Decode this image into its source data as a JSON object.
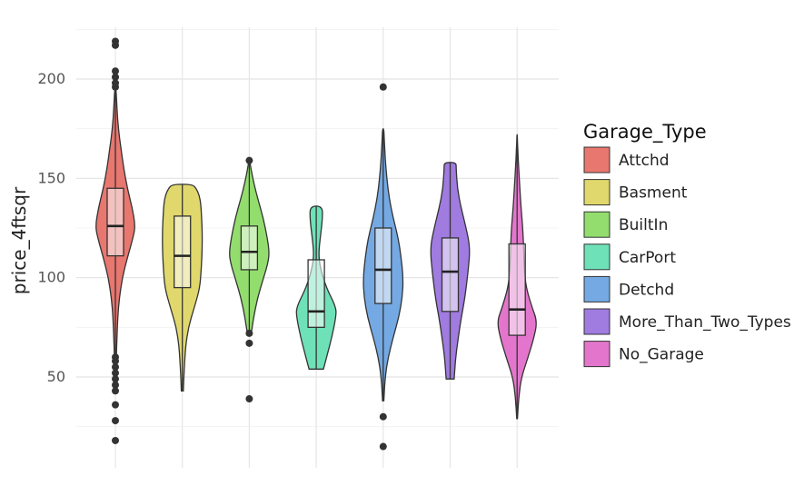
{
  "chart_data": {
    "type": "violin",
    "title": "",
    "xlabel": "",
    "ylabel": "price_4ftsqr",
    "ylim": [
      10,
      225
    ],
    "yticks": [
      50,
      100,
      150,
      200
    ],
    "grid": true,
    "legend": {
      "title": "Garage_Type",
      "position": "right"
    },
    "groups": [
      {
        "name": "Attchd",
        "color": "#e8776f",
        "min": 60,
        "max": 196,
        "q1": 111,
        "median": 126,
        "q3": 145,
        "outliers": [
          219,
          217,
          204,
          201,
          198,
          196,
          60,
          58,
          55,
          52,
          49,
          46,
          43,
          36,
          28,
          18
        ],
        "density": [
          [
            60,
            0.05
          ],
          [
            70,
            0.08
          ],
          [
            80,
            0.12
          ],
          [
            90,
            0.2
          ],
          [
            100,
            0.35
          ],
          [
            110,
            0.6
          ],
          [
            120,
            0.88
          ],
          [
            126,
            1.0
          ],
          [
            135,
            0.85
          ],
          [
            145,
            0.6
          ],
          [
            155,
            0.42
          ],
          [
            165,
            0.28
          ],
          [
            175,
            0.15
          ],
          [
            185,
            0.08
          ],
          [
            196,
            0.03
          ]
        ]
      },
      {
        "name": "Basment",
        "color": "#e0d86c",
        "min": 43,
        "max": 147,
        "q1": 95,
        "median": 111,
        "q3": 131,
        "outliers": [],
        "density": [
          [
            43,
            0.05
          ],
          [
            55,
            0.1
          ],
          [
            65,
            0.16
          ],
          [
            75,
            0.3
          ],
          [
            85,
            0.6
          ],
          [
            95,
            0.88
          ],
          [
            105,
            0.95
          ],
          [
            111,
            0.98
          ],
          [
            120,
            1.0
          ],
          [
            130,
            0.97
          ],
          [
            140,
            0.9
          ],
          [
            145,
            0.7
          ],
          [
            147,
            0.48
          ]
        ]
      },
      {
        "name": "BuiltIn",
        "color": "#93dd6e",
        "min": 72,
        "max": 158,
        "q1": 104,
        "median": 113,
        "q3": 126,
        "outliers": [
          159,
          72,
          67,
          39
        ],
        "density": [
          [
            72,
            0.1
          ],
          [
            80,
            0.22
          ],
          [
            90,
            0.42
          ],
          [
            100,
            0.72
          ],
          [
            108,
            0.95
          ],
          [
            113,
            1.0
          ],
          [
            120,
            0.9
          ],
          [
            130,
            0.7
          ],
          [
            140,
            0.42
          ],
          [
            148,
            0.22
          ],
          [
            155,
            0.08
          ],
          [
            158,
            0.04
          ]
        ]
      },
      {
        "name": "CarPort",
        "color": "#6fe1b9",
        "min": 54,
        "max": 136,
        "q1": 75,
        "median": 83,
        "q3": 109,
        "outliers": [],
        "density": [
          [
            54,
            0.36
          ],
          [
            60,
            0.52
          ],
          [
            70,
            0.78
          ],
          [
            80,
            0.98
          ],
          [
            85,
            1.0
          ],
          [
            95,
            0.5
          ],
          [
            105,
            0.2
          ],
          [
            112,
            0.12
          ],
          [
            120,
            0.2
          ],
          [
            130,
            0.32
          ],
          [
            136,
            0.3
          ]
        ]
      },
      {
        "name": "Detchd",
        "color": "#74a9e3",
        "min": 38,
        "max": 175,
        "q1": 87,
        "median": 104,
        "q3": 125,
        "outliers": [
          196,
          30,
          15
        ],
        "density": [
          [
            38,
            0.03
          ],
          [
            50,
            0.1
          ],
          [
            60,
            0.25
          ],
          [
            70,
            0.5
          ],
          [
            80,
            0.78
          ],
          [
            90,
            0.96
          ],
          [
            100,
            1.0
          ],
          [
            110,
            0.9
          ],
          [
            120,
            0.75
          ],
          [
            130,
            0.5
          ],
          [
            140,
            0.3
          ],
          [
            150,
            0.18
          ],
          [
            160,
            0.1
          ],
          [
            170,
            0.05
          ],
          [
            175,
            0.03
          ]
        ]
      },
      {
        "name": "More_Than_Two_Types",
        "color": "#a07be0",
        "min": 49,
        "max": 158,
        "q1": 83,
        "median": 103,
        "q3": 120,
        "outliers": [],
        "density": [
          [
            49,
            0.2
          ],
          [
            58,
            0.26
          ],
          [
            68,
            0.38
          ],
          [
            80,
            0.56
          ],
          [
            90,
            0.74
          ],
          [
            103,
            0.9
          ],
          [
            115,
            1.0
          ],
          [
            125,
            0.8
          ],
          [
            135,
            0.55
          ],
          [
            145,
            0.36
          ],
          [
            155,
            0.3
          ],
          [
            158,
            0.3
          ]
        ]
      },
      {
        "name": "No_Garage",
        "color": "#e376cc",
        "min": 29,
        "max": 172,
        "q1": 71,
        "median": 84,
        "q3": 117,
        "outliers": [],
        "density": [
          [
            29,
            0.02
          ],
          [
            40,
            0.08
          ],
          [
            50,
            0.22
          ],
          [
            60,
            0.55
          ],
          [
            70,
            0.85
          ],
          [
            78,
            1.0
          ],
          [
            85,
            0.75
          ],
          [
            95,
            0.45
          ],
          [
            105,
            0.35
          ],
          [
            115,
            0.33
          ],
          [
            125,
            0.28
          ],
          [
            135,
            0.2
          ],
          [
            145,
            0.14
          ],
          [
            155,
            0.08
          ],
          [
            165,
            0.03
          ],
          [
            172,
            0.01
          ]
        ]
      }
    ]
  }
}
